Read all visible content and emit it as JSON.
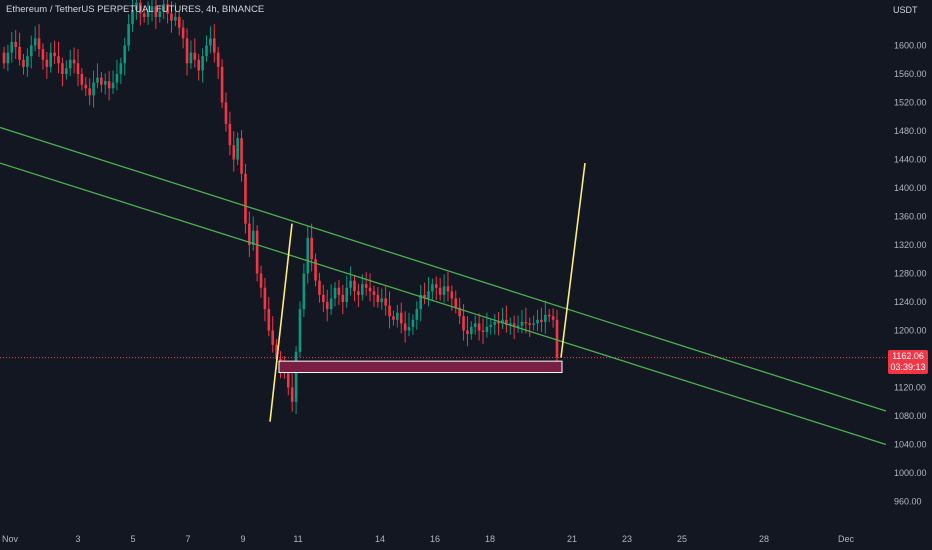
{
  "header": {
    "symbol_title": "Ethereum / TetherUS PERPETUAL FUTURES, 4h, BINANCE",
    "currency": "USDT"
  },
  "price_axis": {
    "ticks": [
      "1600.00",
      "1560.00",
      "1520.00",
      "1480.00",
      "1440.00",
      "1400.00",
      "1360.00",
      "1320.00",
      "1280.00",
      "1240.00",
      "1200.00",
      "1120.00",
      "1080.00",
      "1040.00",
      "1000.00",
      "960.00"
    ]
  },
  "time_axis": {
    "ticks": [
      "Nov",
      "3",
      "5",
      "7",
      "9",
      "11",
      "14",
      "16",
      "18",
      "21",
      "23",
      "25",
      "28",
      "Dec"
    ]
  },
  "last_price": {
    "value": "1162.06",
    "countdown": "03:39:13",
    "color": "#f23645"
  },
  "colors": {
    "background": "#131722",
    "up_candle": "#089981",
    "down_candle": "#f23645",
    "trendline": "#4caf50",
    "projection": "#ffeb80",
    "zone_fill": "#7a1f44",
    "zone_border": "#ffffff"
  },
  "chart_data": {
    "type": "candlestick",
    "title": "Ethereum / TetherUS PERPETUAL FUTURES, 4h, BINANCE",
    "ylim": [
      935,
      1640
    ],
    "y_ticks": [
      960,
      1000,
      1040,
      1080,
      1120,
      1200,
      1240,
      1280,
      1320,
      1360,
      1400,
      1440,
      1480,
      1520,
      1560,
      1600
    ],
    "candles_close": [
      1575,
      1590,
      1605,
      1598,
      1580,
      1570,
      1585,
      1600,
      1610,
      1595,
      1580,
      1570,
      1590,
      1585,
      1575,
      1560,
      1568,
      1580,
      1575,
      1560,
      1545,
      1540,
      1530,
      1548,
      1555,
      1545,
      1550,
      1540,
      1548,
      1560,
      1575,
      1600,
      1630,
      1650,
      1660,
      1645,
      1640,
      1648,
      1655,
      1640,
      1648,
      1658,
      1645,
      1635,
      1640,
      1625,
      1610,
      1575,
      1590,
      1580,
      1565,
      1585,
      1600,
      1610,
      1590,
      1570,
      1520,
      1490,
      1460,
      1440,
      1470,
      1420,
      1350,
      1320,
      1340,
      1280,
      1260,
      1230,
      1200,
      1180,
      1160,
      1150,
      1140,
      1120,
      1100,
      1170,
      1230,
      1280,
      1330,
      1300,
      1270,
      1250,
      1240,
      1230,
      1245,
      1260,
      1250,
      1240,
      1260,
      1270,
      1255,
      1250,
      1265,
      1260,
      1255,
      1250,
      1240,
      1245,
      1235,
      1220,
      1215,
      1225,
      1210,
      1200,
      1205,
      1215,
      1230,
      1250,
      1245,
      1255,
      1265,
      1260,
      1250,
      1262,
      1255,
      1245,
      1232,
      1220,
      1200,
      1195,
      1205,
      1210,
      1200,
      1198,
      1205,
      1208,
      1212,
      1210,
      1215,
      1208,
      1210,
      1205,
      1207,
      1212,
      1210,
      1208,
      1210,
      1215,
      1212,
      1222,
      1220,
      1215,
      1162
    ],
    "trendlines": [
      {
        "name": "upper",
        "from": {
          "date": "Nov 1",
          "price": 1485
        },
        "to": {
          "date": "Dec 2",
          "price": 1087
        }
      },
      {
        "name": "lower",
        "from": {
          "date": "Nov 1",
          "price": 1435
        },
        "to": {
          "date": "Dec 2",
          "price": 1040
        }
      }
    ],
    "zone": {
      "price_top": 1157,
      "price_bottom": 1141,
      "from_date": "Nov 10",
      "to_date": "Nov 20"
    },
    "projections": [
      {
        "from": {
          "date": "Nov 10",
          "price": 1072
        },
        "to": {
          "date": "Nov 11",
          "price": 1350
        }
      },
      {
        "from": {
          "date": "Nov 20",
          "price": 1162
        },
        "to": {
          "date": "Nov 21",
          "price": 1435
        }
      }
    ]
  }
}
